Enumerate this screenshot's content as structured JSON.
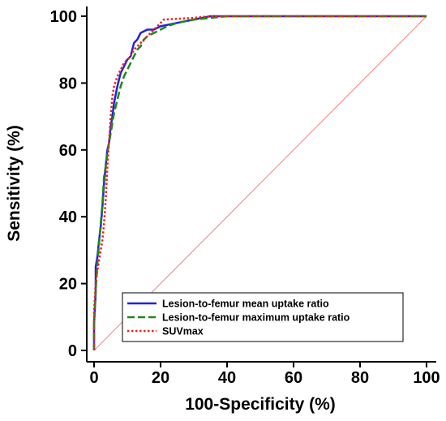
{
  "chart_data": {
    "type": "line",
    "title": "",
    "xlabel": "100-Specificity (%)",
    "ylabel": "Sensitivity (%)",
    "xlim": [
      0,
      100
    ],
    "ylim": [
      0,
      100
    ],
    "x_ticks": [
      0,
      20,
      40,
      60,
      80,
      100
    ],
    "y_ticks": [
      0,
      20,
      40,
      60,
      80,
      100
    ],
    "grid": false,
    "legend_position": "bottom-left",
    "reference_line": {
      "x": [
        0,
        100
      ],
      "y": [
        0,
        100
      ],
      "color": "#f08080"
    },
    "series": [
      {
        "name": "Lesion-to-femur mean uptake ratio",
        "color": "#2222dd",
        "dash": "solid",
        "points": [
          [
            0,
            0
          ],
          [
            0,
            8
          ],
          [
            0.5,
            17
          ],
          [
            0.5,
            25
          ],
          [
            1,
            28
          ],
          [
            1.5,
            33
          ],
          [
            2,
            37
          ],
          [
            2.5,
            43
          ],
          [
            3,
            50
          ],
          [
            3.5,
            55
          ],
          [
            4,
            60
          ],
          [
            4.5,
            62
          ],
          [
            5,
            67
          ],
          [
            5.5,
            70
          ],
          [
            6,
            74
          ],
          [
            7,
            79
          ],
          [
            8,
            83
          ],
          [
            9,
            85
          ],
          [
            10,
            87
          ],
          [
            11,
            88
          ],
          [
            12,
            92
          ],
          [
            13,
            93
          ],
          [
            14,
            95
          ],
          [
            16,
            96
          ],
          [
            18,
            96
          ],
          [
            20,
            97
          ],
          [
            25,
            98
          ],
          [
            30,
            99
          ],
          [
            35,
            100
          ],
          [
            37,
            100
          ],
          [
            100,
            100
          ]
        ]
      },
      {
        "name": "Lesion-to-femur maximum uptake ratio",
        "color": "#1a8a1a",
        "dash": "dashed",
        "points": [
          [
            0,
            0
          ],
          [
            0,
            8
          ],
          [
            0.5,
            18
          ],
          [
            1,
            26
          ],
          [
            1.5,
            32
          ],
          [
            2,
            38
          ],
          [
            2.5,
            44
          ],
          [
            3,
            52
          ],
          [
            3.5,
            55
          ],
          [
            4,
            59
          ],
          [
            4.5,
            62
          ],
          [
            5,
            65
          ],
          [
            6,
            71
          ],
          [
            7,
            75
          ],
          [
            8,
            79
          ],
          [
            9,
            82
          ],
          [
            10,
            84
          ],
          [
            11,
            86
          ],
          [
            12,
            88
          ],
          [
            13,
            90
          ],
          [
            14,
            91
          ],
          [
            15,
            93
          ],
          [
            16,
            94
          ],
          [
            18,
            95
          ],
          [
            20,
            96
          ],
          [
            22,
            97
          ],
          [
            25,
            98
          ],
          [
            30,
            99
          ],
          [
            35,
            99.5
          ],
          [
            40,
            100
          ],
          [
            100,
            100
          ]
        ]
      },
      {
        "name": "SUVmax",
        "color": "#ee2222",
        "dash": "dotted",
        "points": [
          [
            0,
            0
          ],
          [
            0,
            12
          ],
          [
            0.5,
            20
          ],
          [
            1,
            24
          ],
          [
            1.5,
            27
          ],
          [
            2,
            30
          ],
          [
            2.5,
            33
          ],
          [
            3,
            38
          ],
          [
            3.5,
            45
          ],
          [
            4,
            55
          ],
          [
            4.5,
            62
          ],
          [
            5,
            70
          ],
          [
            5.5,
            76
          ],
          [
            6,
            79
          ],
          [
            7,
            82
          ],
          [
            8,
            84
          ],
          [
            9,
            86
          ],
          [
            10,
            87
          ],
          [
            11,
            88
          ],
          [
            12,
            90
          ],
          [
            13,
            91
          ],
          [
            14,
            92
          ],
          [
            15,
            93
          ],
          [
            16,
            94
          ],
          [
            17,
            95
          ],
          [
            18,
            96
          ],
          [
            19,
            97
          ],
          [
            20,
            98
          ],
          [
            21,
            99
          ],
          [
            30,
            99.5
          ],
          [
            35,
            100
          ],
          [
            100,
            100
          ]
        ]
      }
    ]
  }
}
